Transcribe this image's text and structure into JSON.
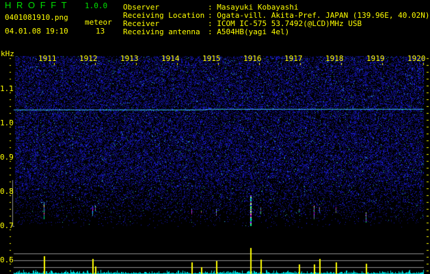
{
  "header": {
    "app_title": "H R O F F T",
    "version": "1.0.0",
    "filename": "0401081910.png",
    "datetime": "04.01.08 19:10",
    "meteor_label": "meteor",
    "meteor_count": "13",
    "info": [
      {
        "label": "Observer",
        "value": ": Masayuki Kobayashi"
      },
      {
        "label": "Receiving Location",
        "value": ": Ogata-vill. Akita-Pref. JAPAN (139.96E, 40.02N)"
      },
      {
        "label": "Receiver",
        "value": ": ICOM IC-575 53.7492(@LCD)MHz USB"
      },
      {
        "label": "Receiving antenna",
        "value": ": A504HB(yagi 4el)"
      }
    ]
  },
  "chart_data": {
    "type": "heatmap",
    "ylabel": "kHz",
    "y_ticks": [
      "1.1",
      "1.0",
      "0.9",
      "0.8",
      "0.7",
      "0.6"
    ],
    "ylim": [
      0.56,
      1.2
    ],
    "x_ticks": [
      "1911",
      "1912",
      "1913",
      "1914",
      "1915",
      "1916",
      "1917",
      "1918",
      "1919",
      "1920"
    ],
    "xlim_minutes": [
      1910,
      1920
    ],
    "carrier_line_khz": 1.04,
    "colors": {
      "noise": "#1a1aff",
      "text": "#ffff00",
      "title": "#00e000",
      "bars": "#ffff00",
      "baseline": "#00e0e0",
      "grid": "#909090"
    },
    "meteors": [
      {
        "time": 1910.73,
        "f_low": 0.72,
        "f_high": 0.77,
        "strength": 26
      },
      {
        "time": 1911.92,
        "f_low": 0.73,
        "f_high": 0.76,
        "strength": 22
      },
      {
        "time": 1911.98,
        "f_low": 0.745,
        "f_high": 0.76,
        "strength": 11
      },
      {
        "time": 1914.33,
        "f_low": 0.735,
        "f_high": 0.75,
        "strength": 17
      },
      {
        "time": 1914.57,
        "f_low": 0.74,
        "f_high": 0.745,
        "strength": 10
      },
      {
        "time": 1914.93,
        "f_low": 0.73,
        "f_high": 0.75,
        "strength": 19
      },
      {
        "time": 1915.77,
        "f_low": 0.7,
        "f_high": 0.79,
        "strength": 38
      },
      {
        "time": 1916.02,
        "f_low": 0.735,
        "f_high": 0.755,
        "strength": 21
      },
      {
        "time": 1916.95,
        "f_low": 0.74,
        "f_high": 0.75,
        "strength": 14
      },
      {
        "time": 1917.32,
        "f_low": 0.72,
        "f_high": 0.76,
        "strength": 14
      },
      {
        "time": 1917.45,
        "f_low": 0.74,
        "f_high": 0.755,
        "strength": 22
      },
      {
        "time": 1917.85,
        "f_low": 0.74,
        "f_high": 0.755,
        "strength": 17
      },
      {
        "time": 1918.58,
        "f_low": 0.71,
        "f_high": 0.74,
        "strength": 15
      }
    ]
  }
}
